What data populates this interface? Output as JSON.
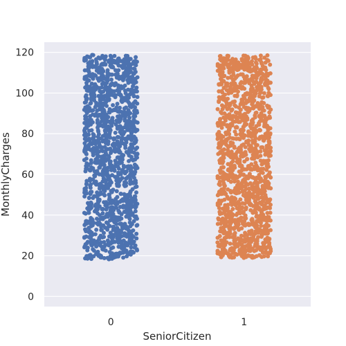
{
  "chart_data": {
    "type": "scatter",
    "subtype": "strip",
    "xlabel": "SeniorCitizen",
    "ylabel": "MonthlyCharges",
    "categories": [
      "0",
      "1"
    ],
    "ylim": [
      -5,
      125
    ],
    "y_ticks": [
      0,
      20,
      40,
      60,
      80,
      100,
      120
    ],
    "grid": true,
    "series": [
      {
        "category": "0",
        "color": "#4c72b0",
        "y_min": 18.25,
        "y_max": 118.75,
        "jitter_width": 0.2
      },
      {
        "category": "1",
        "color": "#dd8452",
        "y_min": 18.85,
        "y_max": 118.6,
        "jitter_width": 0.2
      }
    ],
    "background": "#eaeaf2",
    "gridline_color": "#ffffff"
  }
}
